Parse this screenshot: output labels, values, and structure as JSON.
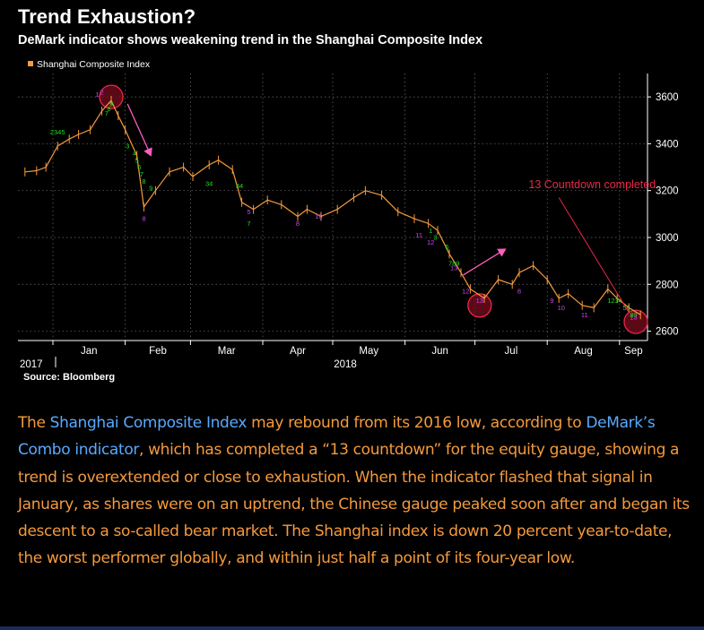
{
  "header": {
    "title": "Trend Exhaustion?",
    "subtitle": "DeMark indicator shows weakening trend in the Shanghai Composite Index"
  },
  "source": "Source: Bloomberg",
  "caption": {
    "parts": [
      {
        "text": "The ",
        "link": false
      },
      {
        "text": "Shanghai Composite Index",
        "link": true
      },
      {
        "text": " may rebound from its 2016 low, according to ",
        "link": false
      },
      {
        "text": "DeMark’s Combo indicator",
        "link": true
      },
      {
        "text": ", which has completed a “13 countdown” for the equity gauge, showing a trend is overextended or close to exhaustion. When the indicator flashed that signal in January, as shares were on an uptrend, the Chinese gauge peaked soon after and began its descent to a so-called bear market. The Shanghai index is down 20 percent year-to-date, the worst performer globally, and within just half a point of its four-year low.",
        "link": false
      }
    ]
  },
  "colors": {
    "background": "#000000",
    "series": "#f59a3d",
    "text": "#ffffff",
    "link": "#5aa9ff",
    "annotation": "#e8284b",
    "arrow": "#ff5cc0",
    "setup_count": "#22dd22",
    "countdown_count": "#cc44ee",
    "grid": "#6e6e6e"
  },
  "chart_data": {
    "type": "line",
    "title": "Trend Exhaustion?",
    "subtitle": "DeMark indicator shows weakening trend in the Shanghai Composite Index",
    "legend": {
      "entries": [
        "Shanghai Composite Index"
      ],
      "placement": "top-left"
    },
    "x_axis": {
      "month_labels": [
        "Jan",
        "Feb",
        "Mar",
        "Apr",
        "May",
        "Jun",
        "Jul",
        "Aug",
        "Sep"
      ],
      "year_labels": [
        "2017",
        "2018"
      ]
    },
    "y_axis": {
      "position": "right",
      "ticks": [
        2600,
        2800,
        3000,
        3200,
        3400,
        3600
      ],
      "ylim": [
        2560,
        3700
      ]
    },
    "grid": true,
    "series": [
      {
        "name": "Shanghai Composite Index",
        "x": [
          "2017-12-20",
          "2017-12-25",
          "2017-12-29",
          "2018-01-03",
          "2018-01-08",
          "2018-01-12",
          "2018-01-17",
          "2018-01-22",
          "2018-01-26",
          "2018-01-29",
          "2018-02-01",
          "2018-02-06",
          "2018-02-09",
          "2018-02-14",
          "2018-02-20",
          "2018-02-26",
          "2018-03-02",
          "2018-03-09",
          "2018-03-13",
          "2018-03-19",
          "2018-03-23",
          "2018-03-28",
          "2018-04-03",
          "2018-04-09",
          "2018-04-16",
          "2018-04-20",
          "2018-04-26",
          "2018-05-03",
          "2018-05-10",
          "2018-05-15",
          "2018-05-22",
          "2018-05-29",
          "2018-06-05",
          "2018-06-11",
          "2018-06-15",
          "2018-06-20",
          "2018-06-25",
          "2018-06-29",
          "2018-07-05",
          "2018-07-11",
          "2018-07-17",
          "2018-07-20",
          "2018-07-26",
          "2018-08-01",
          "2018-08-06",
          "2018-08-10",
          "2018-08-16",
          "2018-08-21",
          "2018-08-27",
          "2018-08-31",
          "2018-09-05",
          "2018-09-10"
        ],
        "values": [
          3280,
          3285,
          3300,
          3390,
          3420,
          3440,
          3460,
          3540,
          3585,
          3520,
          3460,
          3350,
          3130,
          3200,
          3280,
          3300,
          3260,
          3310,
          3330,
          3290,
          3150,
          3120,
          3160,
          3140,
          3090,
          3120,
          3090,
          3120,
          3170,
          3200,
          3180,
          3110,
          3080,
          3060,
          3030,
          2930,
          2850,
          2780,
          2740,
          2820,
          2800,
          2850,
          2880,
          2820,
          2740,
          2760,
          2710,
          2700,
          2780,
          2740,
          2700,
          2670
        ]
      }
    ],
    "indicators": {
      "setup_counts": [
        {
          "x": "2018-01-03",
          "y": 3440,
          "text": "2345"
        },
        {
          "x": "2018-01-24",
          "y": 3520,
          "text": "7"
        },
        {
          "x": "2018-01-25",
          "y": 3540,
          "text": "8"
        },
        {
          "x": "2018-01-26",
          "y": 3560,
          "text": "9"
        },
        {
          "x": "2018-02-02",
          "y": 3380,
          "text": "3"
        },
        {
          "x": "2018-02-05",
          "y": 3350,
          "text": "4"
        },
        {
          "x": "2018-02-06",
          "y": 3320,
          "text": "5"
        },
        {
          "x": "2018-02-07",
          "y": 3290,
          "text": "6"
        },
        {
          "x": "2018-02-08",
          "y": 3260,
          "text": "7"
        },
        {
          "x": "2018-02-09",
          "y": 3230,
          "text": "8"
        },
        {
          "x": "2018-02-12",
          "y": 3200,
          "text": "9"
        },
        {
          "x": "2018-03-09",
          "y": 3220,
          "text": "34"
        },
        {
          "x": "2018-03-22",
          "y": 3210,
          "text": "34"
        },
        {
          "x": "2018-03-26",
          "y": 3050,
          "text": "7"
        },
        {
          "x": "2018-06-12",
          "y": 3020,
          "text": "1"
        },
        {
          "x": "2018-06-14",
          "y": 2990,
          "text": "3"
        },
        {
          "x": "2018-06-19",
          "y": 2950,
          "text": "5"
        },
        {
          "x": "2018-06-22",
          "y": 2880,
          "text": "789"
        },
        {
          "x": "2018-08-30",
          "y": 2720,
          "text": "1234"
        },
        {
          "x": "2018-09-04",
          "y": 2690,
          "text": "56"
        },
        {
          "x": "2018-09-07",
          "y": 2660,
          "text": "89"
        }
      ],
      "countdown_counts": [
        {
          "x": "2018-01-20",
          "y": 3600,
          "text": "1"
        },
        {
          "x": "2018-01-22",
          "y": 3610,
          "text": "2"
        },
        {
          "x": "2018-02-09",
          "y": 3070,
          "text": "8"
        },
        {
          "x": "2018-03-26",
          "y": 3100,
          "text": "5"
        },
        {
          "x": "2018-04-16",
          "y": 3050,
          "text": "8"
        },
        {
          "x": "2018-04-25",
          "y": 3080,
          "text": "10"
        },
        {
          "x": "2018-06-07",
          "y": 3000,
          "text": "11"
        },
        {
          "x": "2018-06-12",
          "y": 2970,
          "text": "12"
        },
        {
          "x": "2018-06-22",
          "y": 2860,
          "text": "13"
        },
        {
          "x": "2018-06-27",
          "y": 2760,
          "text": "12"
        },
        {
          "x": "2018-07-03",
          "y": 2720,
          "text": "13"
        },
        {
          "x": "2018-07-20",
          "y": 2760,
          "text": "8"
        },
        {
          "x": "2018-08-03",
          "y": 2720,
          "text": "9"
        },
        {
          "x": "2018-08-07",
          "y": 2690,
          "text": "10"
        },
        {
          "x": "2018-08-17",
          "y": 2660,
          "text": "11"
        },
        {
          "x": "2018-09-07",
          "y": 2650,
          "text": "13"
        }
      ]
    },
    "annotations": [
      {
        "text": "13 Countdown completed",
        "x": "2018-07-24",
        "y": 3210
      }
    ],
    "highlight_circles": [
      {
        "x": "2018-01-26",
        "y": 3600
      },
      {
        "x": "2018-07-03",
        "y": 2710
      },
      {
        "x": "2018-09-08",
        "y": 2640
      }
    ],
    "arrows": [
      {
        "from": {
          "x": "2018-02-02",
          "y": 3570
        },
        "to": {
          "x": "2018-02-12",
          "y": 3350
        }
      },
      {
        "from": {
          "x": "2018-06-26",
          "y": 2840
        },
        "to": {
          "x": "2018-07-14",
          "y": 2950
        }
      }
    ],
    "pointer_line": {
      "from": {
        "x": "2018-08-06",
        "y": 3170
      },
      "to": {
        "x": "2018-09-05",
        "y": 2680
      }
    }
  }
}
